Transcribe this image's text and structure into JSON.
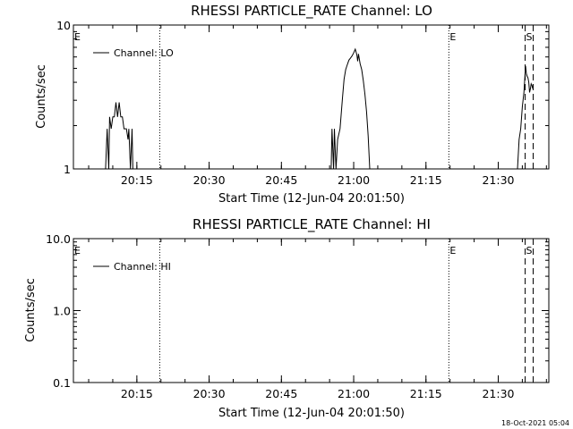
{
  "footer": {
    "timestamp": "18-Oct-2021 05:04"
  },
  "chart_data": [
    {
      "type": "line",
      "title": "RHESSI PARTICLE_RATE Channel: LO",
      "xlabel": "Start Time (12-Jun-04 20:01:50)",
      "ylabel": "Counts/sec",
      "yscale": "log",
      "ylim": [
        1,
        10
      ],
      "ytick_labels": [
        "1",
        "10"
      ],
      "xlim": [
        "20:01:50",
        "21:40:30"
      ],
      "xtick_labels": [
        "20:15",
        "20:30",
        "20:45",
        "21:00",
        "21:15",
        "21:30"
      ],
      "grid": false,
      "legend": "top-left",
      "legend_label": "Channel: LO",
      "markers": [
        {
          "time": "20:01:50",
          "label": "E",
          "style": "dotted"
        },
        {
          "time": "20:19:45",
          "label": "",
          "style": "dotted"
        },
        {
          "time": "21:19:45",
          "label": "E",
          "style": "dotted"
        },
        {
          "time": "21:35:35",
          "label": "S",
          "style": "dashed"
        },
        {
          "time": "21:37:15",
          "label": "",
          "style": "dashed"
        }
      ],
      "series": [
        {
          "name": "Channel: LO",
          "segments": [
            [
              [
                "20:08:30",
                1.0
              ],
              [
                "20:08:50",
                1.9
              ],
              [
                "20:09:10",
                1.0
              ],
              [
                "20:09:20",
                2.3
              ],
              [
                "20:09:40",
                1.9
              ],
              [
                "20:10:00",
                2.3
              ],
              [
                "20:10:20",
                2.3
              ],
              [
                "20:10:40",
                2.9
              ],
              [
                "20:11:00",
                2.3
              ],
              [
                "20:11:20",
                2.9
              ],
              [
                "20:11:40",
                2.3
              ],
              [
                "20:12:00",
                2.3
              ],
              [
                "20:12:20",
                1.9
              ],
              [
                "20:12:50",
                1.9
              ],
              [
                "20:13:10",
                1.6
              ],
              [
                "20:13:20",
                1.9
              ],
              [
                "20:13:40",
                1.0
              ],
              [
                "20:14:00",
                1.9
              ],
              [
                "20:14:10",
                1.0
              ]
            ],
            [
              [
                "20:55:20",
                1.0
              ],
              [
                "20:55:30",
                1.9
              ],
              [
                "20:55:50",
                1.0
              ],
              [
                "20:56:00",
                1.9
              ],
              [
                "20:56:20",
                1.0
              ],
              [
                "20:56:40",
                1.6
              ],
              [
                "20:57:10",
                1.9
              ],
              [
                "20:57:40",
                3.1
              ],
              [
                "20:58:00",
                4.2
              ],
              [
                "20:58:20",
                4.9
              ],
              [
                "20:58:40",
                5.3
              ],
              [
                "20:59:00",
                5.7
              ],
              [
                "20:59:20",
                5.9
              ],
              [
                "20:59:40",
                6.1
              ],
              [
                "21:00:00",
                6.4
              ],
              [
                "21:00:20",
                6.8
              ],
              [
                "21:00:40",
                6.2
              ],
              [
                "21:00:50",
                5.6
              ],
              [
                "21:01:00",
                6.3
              ],
              [
                "21:01:20",
                5.4
              ],
              [
                "21:01:40",
                4.9
              ],
              [
                "21:02:00",
                4.1
              ],
              [
                "21:02:20",
                3.3
              ],
              [
                "21:02:40",
                2.5
              ],
              [
                "21:03:00",
                1.7
              ],
              [
                "21:03:20",
                1.0
              ]
            ],
            [
              [
                "21:34:00",
                1.0
              ],
              [
                "21:34:20",
                1.6
              ],
              [
                "21:34:40",
                1.9
              ],
              [
                "21:35:00",
                2.7
              ],
              [
                "21:35:20",
                3.4
              ],
              [
                "21:35:40",
                5.2
              ],
              [
                "21:35:50",
                4.6
              ],
              [
                "21:36:00",
                4.4
              ],
              [
                "21:36:10",
                4.3
              ],
              [
                "21:36:20",
                4.0
              ],
              [
                "21:36:30",
                3.4
              ],
              [
                "21:36:40",
                3.6
              ],
              [
                "21:36:50",
                3.9
              ],
              [
                "21:37:00",
                3.8
              ],
              [
                "21:37:10",
                3.6
              ]
            ]
          ]
        }
      ]
    },
    {
      "type": "line",
      "title": "RHESSI PARTICLE_RATE Channel: HI",
      "xlabel": "Start Time (12-Jun-04 20:01:50)",
      "ylabel": "Counts/sec",
      "yscale": "log",
      "ylim": [
        0.1,
        10
      ],
      "ytick_labels": [
        "0.1",
        "1.0",
        "10.0"
      ],
      "xlim": [
        "20:01:50",
        "21:40:30"
      ],
      "xtick_labels": [
        "20:15",
        "20:30",
        "20:45",
        "21:00",
        "21:15",
        "21:30"
      ],
      "grid": false,
      "legend": "top-left",
      "legend_label": "Channel: HI",
      "markers": [
        {
          "time": "20:01:50",
          "label": "E",
          "style": "dotted"
        },
        {
          "time": "20:19:45",
          "label": "",
          "style": "dotted"
        },
        {
          "time": "21:19:45",
          "label": "E",
          "style": "dotted"
        },
        {
          "time": "21:35:35",
          "label": "S",
          "style": "dashed"
        },
        {
          "time": "21:37:15",
          "label": "",
          "style": "dashed"
        }
      ],
      "series": [
        {
          "name": "Channel: HI",
          "segments": []
        }
      ]
    }
  ]
}
